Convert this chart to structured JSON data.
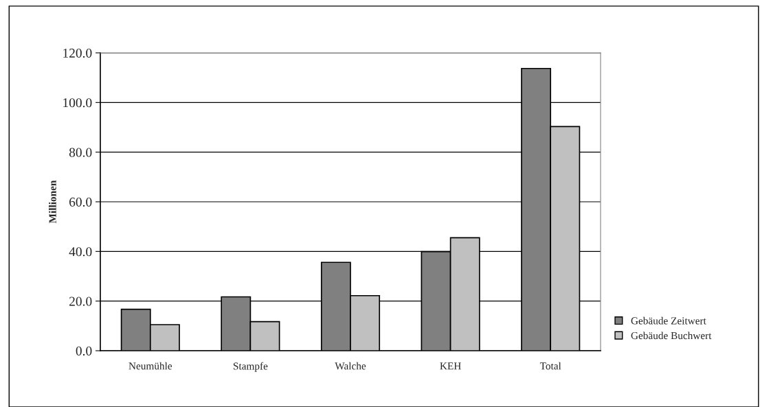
{
  "chart_data": {
    "type": "bar",
    "ylabel": "Millionen",
    "categories": [
      "Neumühle",
      "Stampfe",
      "Walche",
      "KEH",
      "Total"
    ],
    "series": [
      {
        "name": "Gebäude Zeitwert",
        "color": "#808080",
        "values": [
          16.7,
          21.7,
          35.6,
          39.9,
          113.7
        ]
      },
      {
        "name": "Gebäude Buchwert",
        "color": "#c0c0c0",
        "values": [
          10.5,
          11.7,
          22.2,
          45.5,
          90.3
        ]
      }
    ],
    "ylim": [
      0,
      120
    ],
    "yticks": [
      {
        "value": 0,
        "label": "0.0"
      },
      {
        "value": 20,
        "label": "20.0"
      },
      {
        "value": 40,
        "label": "40.0"
      },
      {
        "value": 60,
        "label": "60.0"
      },
      {
        "value": 80,
        "label": "80.0"
      },
      {
        "value": 100,
        "label": "100.0"
      },
      {
        "value": 120,
        "label": "120.0"
      }
    ],
    "grid": "y",
    "legend": "right"
  }
}
